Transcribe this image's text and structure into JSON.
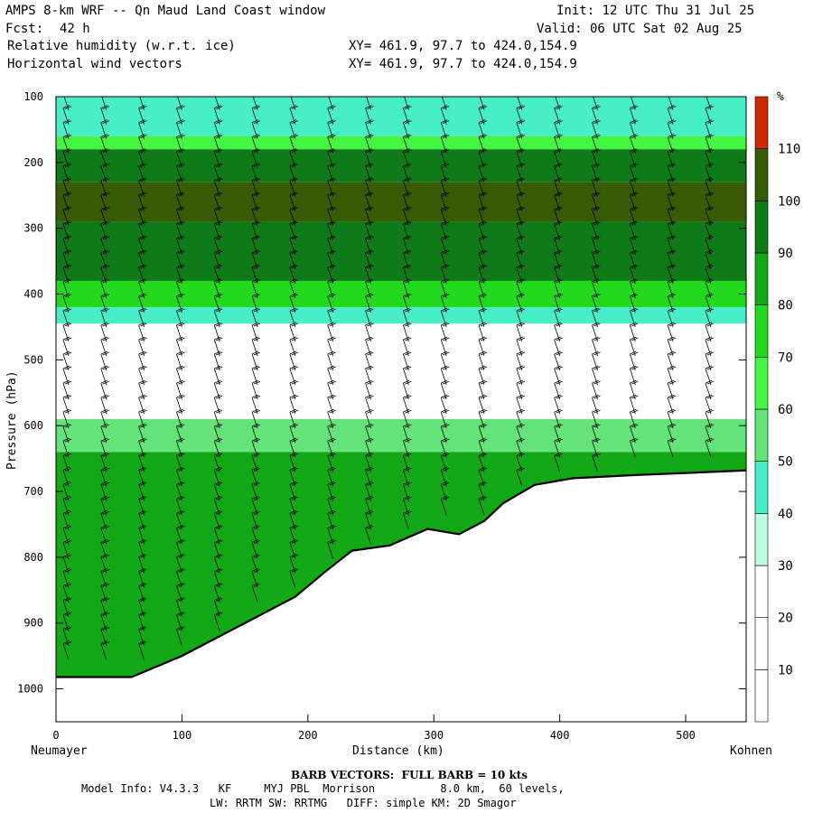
{
  "header": {
    "title": "AMPS 8-km WRF -- Qn Maud Land Coast window",
    "init": "Init: 12 UTC Thu 31 Jul 25",
    "fcst_label": "Fcst:",
    "fcst_value": "42 h",
    "valid": "Valid: 06 UTC Sat 02 Aug 25",
    "field1": "Relative humidity (w.r.t. ice)",
    "field2": "Horizontal wind vectors",
    "xy1": "XY= 461.9, 97.7 to 424.0,154.9",
    "xy2": "XY= 461.9, 97.7 to 424.0,154.9"
  },
  "chart_data": {
    "type": "heatmap",
    "title": "Relative humidity (w.r.t. ice)",
    "xlabel": "Distance (km)",
    "ylabel": "Pressure (hPa)",
    "xlim": [
      0,
      548
    ],
    "ylim": [
      1050,
      100
    ],
    "x_ticks": [
      0,
      100,
      200,
      300,
      400,
      500
    ],
    "y_ticks": [
      100,
      200,
      300,
      400,
      500,
      600,
      700,
      800,
      900,
      1000
    ],
    "left_endpoint": "Neumayer",
    "right_endpoint": "Kohnen",
    "colorbar": {
      "unit": "%",
      "levels": [
        10,
        20,
        30,
        40,
        50,
        60,
        70,
        80,
        90,
        100,
        110
      ],
      "colors": [
        "#ffffff",
        "#ffffff",
        "#ffffff",
        "#bdfde3",
        "#47efc9",
        "#64e37a",
        "#44f542",
        "#23d91d",
        "#13a815",
        "#0e7a18",
        "#385c05",
        "#cc2a00"
      ]
    },
    "terrain_surface": [
      {
        "x": 0,
        "p": 982
      },
      {
        "x": 60,
        "p": 982
      },
      {
        "x": 100,
        "p": 950
      },
      {
        "x": 150,
        "p": 900
      },
      {
        "x": 190,
        "p": 860
      },
      {
        "x": 215,
        "p": 820
      },
      {
        "x": 235,
        "p": 790
      },
      {
        "x": 265,
        "p": 782
      },
      {
        "x": 295,
        "p": 757
      },
      {
        "x": 320,
        "p": 765
      },
      {
        "x": 340,
        "p": 745
      },
      {
        "x": 355,
        "p": 718
      },
      {
        "x": 380,
        "p": 690
      },
      {
        "x": 410,
        "p": 680
      },
      {
        "x": 460,
        "p": 675
      },
      {
        "x": 500,
        "p": 672
      },
      {
        "x": 548,
        "p": 668
      }
    ],
    "rh_bands": [
      {
        "p_top": 100,
        "p_bot": 160,
        "rh": 40
      },
      {
        "p_top": 160,
        "p_bot": 180,
        "rh": 60
      },
      {
        "p_top": 180,
        "p_bot": 230,
        "rh": 90
      },
      {
        "p_top": 230,
        "p_bot": 290,
        "rh": 100
      },
      {
        "p_top": 290,
        "p_bot": 380,
        "rh": 95
      },
      {
        "p_top": 380,
        "p_bot": 420,
        "rh": 70
      },
      {
        "p_top": 420,
        "p_bot": 445,
        "rh": 40
      },
      {
        "p_top": 445,
        "p_bot": 590,
        "rh": 20
      },
      {
        "p_top": 590,
        "p_bot": 640,
        "rh": 50
      },
      {
        "p_top": 640,
        "p_bot": 1050,
        "rh": 80
      }
    ]
  },
  "footer": {
    "barb_note": "BARB VECTORS:  FULL BARB = 10 kts",
    "model_info": "Model Info: V4.3.3   KF     MYJ PBL  Morrison          8.0 km,  60 levels,",
    "physics": "LW: RRTM SW: RRTMG   DIFF: simple KM: 2D Smagor"
  }
}
